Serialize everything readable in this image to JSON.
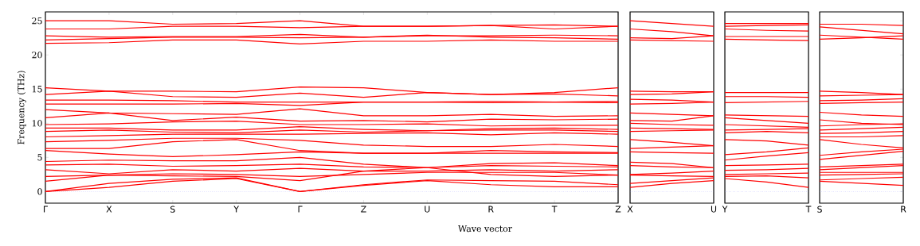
{
  "chart_data": [
    {
      "type": "line",
      "xlabel": "Wave vector",
      "ylabel": "Frequency (THz)",
      "categories": [
        "Γ",
        "X",
        "S",
        "Y",
        "Γ",
        "Z",
        "U",
        "R",
        "T",
        "Z"
      ],
      "ylim": [
        -1.7,
        26.3
      ],
      "yticks": [
        0,
        5,
        10,
        15,
        20,
        25
      ],
      "ref_lines": [
        {
          "axis": "y",
          "value": 0,
          "color": "#8080ff",
          "line_style": "dotted"
        }
      ],
      "series": [
        {
          "color": "#ff0000",
          "values": [
            25.0,
            25.0,
            24.5,
            24.6,
            25.0,
            24.2,
            24.2,
            24.3,
            24.4,
            24.2
          ]
        },
        {
          "color": "#ff0000",
          "values": [
            23.8,
            23.8,
            24.2,
            24.2,
            24.0,
            24.2,
            24.2,
            24.3,
            23.8,
            24.2
          ]
        },
        {
          "color": "#ff0000",
          "values": [
            22.8,
            22.6,
            22.7,
            22.7,
            23.0,
            22.6,
            22.8,
            22.8,
            22.9,
            22.8
          ]
        },
        {
          "color": "#ff0000",
          "values": [
            22.2,
            22.4,
            22.6,
            22.6,
            22.5,
            22.6,
            22.9,
            22.6,
            22.5,
            22.3
          ]
        },
        {
          "color": "#ff0000",
          "values": [
            21.7,
            21.8,
            22.2,
            22.2,
            21.6,
            22.0,
            22.0,
            22.2,
            22.0,
            22.0
          ]
        },
        {
          "color": "#ff0000",
          "values": [
            15.2,
            14.7,
            14.7,
            14.6,
            15.3,
            15.2,
            14.5,
            14.2,
            14.5,
            15.2
          ]
        },
        {
          "color": "#ff0000",
          "values": [
            14.2,
            14.7,
            13.9,
            13.8,
            14.4,
            13.8,
            14.5,
            14.2,
            14.3,
            14.0
          ]
        },
        {
          "color": "#ff0000",
          "values": [
            13.4,
            13.4,
            13.3,
            13.1,
            13.1,
            13.1,
            13.1,
            13.2,
            13.1,
            13.0
          ]
        },
        {
          "color": "#ff0000",
          "values": [
            12.8,
            12.8,
            12.8,
            12.9,
            12.6,
            13.1,
            13.1,
            13.0,
            13.1,
            13.2
          ]
        },
        {
          "color": "#ff0000",
          "values": [
            12.0,
            11.5,
            11.4,
            11.3,
            12.1,
            11.1,
            11.1,
            11.3,
            11.0,
            11.1
          ]
        },
        {
          "color": "#ff0000",
          "values": [
            10.8,
            11.5,
            10.4,
            10.9,
            10.3,
            10.4,
            10.2,
            10.6,
            10.5,
            10.6
          ]
        },
        {
          "color": "#ff0000",
          "values": [
            9.8,
            9.9,
            10.2,
            10.3,
            9.8,
            9.8,
            9.9,
            9.6,
            9.7,
            9.7
          ]
        },
        {
          "color": "#ff0000",
          "values": [
            9.3,
            9.3,
            9.0,
            9.0,
            9.5,
            9.1,
            8.9,
            9.2,
            9.3,
            9.1
          ]
        },
        {
          "color": "#ff0000",
          "values": [
            8.8,
            9.0,
            8.7,
            8.6,
            9.0,
            8.7,
            8.9,
            9.0,
            9.0,
            8.8
          ]
        },
        {
          "color": "#ff0000",
          "values": [
            8.0,
            8.2,
            8.4,
            8.4,
            8.4,
            8.5,
            8.6,
            8.3,
            8.6,
            8.4
          ]
        },
        {
          "color": "#ff0000",
          "values": [
            7.3,
            7.5,
            7.8,
            7.8,
            7.5,
            6.8,
            6.6,
            6.6,
            6.9,
            6.6
          ]
        },
        {
          "color": "#ff0000",
          "values": [
            6.3,
            6.3,
            7.3,
            7.6,
            6.0,
            5.6,
            5.6,
            6.0,
            5.8,
            5.7
          ]
        },
        {
          "color": "#ff0000",
          "values": [
            6.0,
            5.5,
            5.1,
            5.4,
            5.8,
            5.6,
            5.6,
            5.6,
            5.6,
            5.6
          ]
        },
        {
          "color": "#ff0000",
          "values": [
            4.4,
            4.6,
            4.5,
            4.5,
            5.0,
            4.0,
            3.5,
            4.1,
            4.2,
            3.8
          ]
        },
        {
          "color": "#ff0000",
          "values": [
            3.9,
            4.0,
            3.7,
            3.8,
            4.0,
            3.6,
            3.5,
            3.8,
            3.7,
            3.6
          ]
        },
        {
          "color": "#ff0000",
          "values": [
            3.2,
            2.6,
            3.2,
            3.0,
            3.4,
            3.0,
            3.0,
            3.2,
            3.0,
            3.2
          ]
        },
        {
          "color": "#ff0000",
          "values": [
            2.2,
            2.4,
            2.6,
            2.5,
            2.2,
            2.5,
            2.8,
            2.8,
            2.8,
            2.4
          ]
        },
        {
          "color": "#ff0000",
          "values": [
            1.5,
            2.4,
            2.3,
            2.2,
            1.6,
            3.0,
            3.5,
            2.5,
            2.2,
            2.4
          ]
        },
        {
          "color": "#ff0000",
          "values": [
            0,
            1.2,
            1.8,
            2.0,
            0,
            1.0,
            1.7,
            1.6,
            1.5,
            1.0
          ]
        },
        {
          "color": "#ff0000",
          "values": [
            0,
            0.6,
            1.5,
            1.9,
            0,
            0.9,
            1.6,
            1.0,
            0.7,
            0.7
          ]
        }
      ]
    },
    {
      "type": "line",
      "categories": [
        "X",
        null,
        "U"
      ],
      "ylim": [
        -1.7,
        26.3
      ],
      "yticks": [
        0,
        5,
        10,
        15,
        20,
        25
      ],
      "tick_labels": "x",
      "ref_lines": [
        {
          "axis": "y",
          "value": 0,
          "color": "#8080ff",
          "line_style": "dotted"
        }
      ],
      "series": [
        {
          "color": "#ff0000",
          "values": [
            25.0,
            24.6,
            24.2
          ]
        },
        {
          "color": "#ff0000",
          "values": [
            23.8,
            23.4,
            22.8
          ]
        },
        {
          "color": "#ff0000",
          "values": [
            22.5,
            22.4,
            22.8
          ]
        },
        {
          "color": "#ff0000",
          "values": [
            22.2,
            22.1,
            22.0
          ]
        },
        {
          "color": "#ff0000",
          "values": [
            14.7,
            14.6,
            14.6
          ]
        },
        {
          "color": "#ff0000",
          "values": [
            14.2,
            14.3,
            14.6
          ]
        },
        {
          "color": "#ff0000",
          "values": [
            13.5,
            13.4,
            13.1
          ]
        },
        {
          "color": "#ff0000",
          "values": [
            12.8,
            12.9,
            13.1
          ]
        },
        {
          "color": "#ff0000",
          "values": [
            11.5,
            11.3,
            11.1
          ]
        },
        {
          "color": "#ff0000",
          "values": [
            10.4,
            10.3,
            11.1
          ]
        },
        {
          "color": "#ff0000",
          "values": [
            10.0,
            9.8,
            9.7
          ]
        },
        {
          "color": "#ff0000",
          "values": [
            9.3,
            9.2,
            9.1
          ]
        },
        {
          "color": "#ff0000",
          "values": [
            8.8,
            8.9,
            9.0
          ]
        },
        {
          "color": "#ff0000",
          "values": [
            7.6,
            7.2,
            6.7
          ]
        },
        {
          "color": "#ff0000",
          "values": [
            6.3,
            6.5,
            6.7
          ]
        },
        {
          "color": "#ff0000",
          "values": [
            5.8,
            5.7,
            5.6
          ]
        },
        {
          "color": "#ff0000",
          "values": [
            4.3,
            4.1,
            3.5
          ]
        },
        {
          "color": "#ff0000",
          "values": [
            3.8,
            3.6,
            3.5
          ]
        },
        {
          "color": "#ff0000",
          "values": [
            2.5,
            2.7,
            3.0
          ]
        },
        {
          "color": "#ff0000",
          "values": [
            2.4,
            2.3,
            2.2
          ]
        },
        {
          "color": "#ff0000",
          "values": [
            1.2,
            1.6,
            2.0
          ]
        },
        {
          "color": "#ff0000",
          "values": [
            0.6,
            1.2,
            1.6
          ]
        }
      ]
    },
    {
      "type": "line",
      "categories": [
        "Y",
        null,
        "T"
      ],
      "ylim": [
        -1.7,
        26.3
      ],
      "yticks": [
        0,
        5,
        10,
        15,
        20,
        25
      ],
      "tick_labels": "x",
      "ref_lines": [
        {
          "axis": "y",
          "value": 0,
          "color": "#8080ff",
          "line_style": "dotted"
        }
      ],
      "series": [
        {
          "color": "#ff0000",
          "values": [
            24.6,
            24.6,
            24.6
          ]
        },
        {
          "color": "#ff0000",
          "values": [
            24.2,
            24.3,
            24.4
          ]
        },
        {
          "color": "#ff0000",
          "values": [
            23.8,
            23.6,
            23.5
          ]
        },
        {
          "color": "#ff0000",
          "values": [
            22.7,
            22.7,
            22.7
          ]
        },
        {
          "color": "#ff0000",
          "values": [
            22.3,
            22.2,
            22.1
          ]
        },
        {
          "color": "#ff0000",
          "values": [
            14.5,
            14.5,
            14.5
          ]
        },
        {
          "color": "#ff0000",
          "values": [
            13.9,
            13.9,
            13.8
          ]
        },
        {
          "color": "#ff0000",
          "values": [
            13.0,
            13.1,
            13.2
          ]
        },
        {
          "color": "#ff0000",
          "values": [
            11.2,
            11.1,
            11.0
          ]
        },
        {
          "color": "#ff0000",
          "values": [
            10.8,
            10.4,
            10.0
          ]
        },
        {
          "color": "#ff0000",
          "values": [
            9.8,
            9.6,
            9.4
          ]
        },
        {
          "color": "#ff0000",
          "values": [
            9.0,
            9.1,
            9.2
          ]
        },
        {
          "color": "#ff0000",
          "values": [
            8.6,
            8.8,
            8.6
          ]
        },
        {
          "color": "#ff0000",
          "values": [
            7.6,
            7.4,
            6.8
          ]
        },
        {
          "color": "#ff0000",
          "values": [
            5.4,
            5.8,
            6.4
          ]
        },
        {
          "color": "#ff0000",
          "values": [
            4.6,
            5.2,
            5.7
          ]
        },
        {
          "color": "#ff0000",
          "values": [
            3.8,
            3.9,
            4.0
          ]
        },
        {
          "color": "#ff0000",
          "values": [
            3.1,
            3.2,
            3.4
          ]
        },
        {
          "color": "#ff0000",
          "values": [
            2.5,
            2.6,
            2.7
          ]
        },
        {
          "color": "#ff0000",
          "values": [
            2.2,
            2.3,
            2.0
          ]
        },
        {
          "color": "#ff0000",
          "values": [
            1.9,
            1.4,
            0.6
          ]
        }
      ]
    },
    {
      "type": "line",
      "categories": [
        "S",
        null,
        "R"
      ],
      "ylim": [
        -1.7,
        26.3
      ],
      "yticks": [
        0,
        5,
        10,
        15,
        20,
        25
      ],
      "tick_labels": "x",
      "ref_lines": [
        {
          "axis": "y",
          "value": 0,
          "color": "#8080ff",
          "line_style": "dotted"
        }
      ],
      "series": [
        {
          "color": "#ff0000",
          "values": [
            24.5,
            24.5,
            24.3
          ]
        },
        {
          "color": "#ff0000",
          "values": [
            24.1,
            23.6,
            23.1
          ]
        },
        {
          "color": "#ff0000",
          "values": [
            22.9,
            22.6,
            22.3
          ]
        },
        {
          "color": "#ff0000",
          "values": [
            22.3,
            22.5,
            22.8
          ]
        },
        {
          "color": "#ff0000",
          "values": [
            14.7,
            14.5,
            14.2
          ]
        },
        {
          "color": "#ff0000",
          "values": [
            14.0,
            14.1,
            14.2
          ]
        },
        {
          "color": "#ff0000",
          "values": [
            13.3,
            13.4,
            13.6
          ]
        },
        {
          "color": "#ff0000",
          "values": [
            12.9,
            13.0,
            13.1
          ]
        },
        {
          "color": "#ff0000",
          "values": [
            11.6,
            11.2,
            11.0
          ]
        },
        {
          "color": "#ff0000",
          "values": [
            10.5,
            10.0,
            9.8
          ]
        },
        {
          "color": "#ff0000",
          "values": [
            9.6,
            9.8,
            9.9
          ]
        },
        {
          "color": "#ff0000",
          "values": [
            9.0,
            9.2,
            9.4
          ]
        },
        {
          "color": "#ff0000",
          "values": [
            8.5,
            8.6,
            8.8
          ]
        },
        {
          "color": "#ff0000",
          "values": [
            8.0,
            8.0,
            8.2
          ]
        },
        {
          "color": "#ff0000",
          "values": [
            7.6,
            6.9,
            6.4
          ]
        },
        {
          "color": "#ff0000",
          "values": [
            5.3,
            5.8,
            6.2
          ]
        },
        {
          "color": "#ff0000",
          "values": [
            4.7,
            5.3,
            5.9
          ]
        },
        {
          "color": "#ff0000",
          "values": [
            3.6,
            3.8,
            4.0
          ]
        },
        {
          "color": "#ff0000",
          "values": [
            3.2,
            3.5,
            3.8
          ]
        },
        {
          "color": "#ff0000",
          "values": [
            2.8,
            2.8,
            2.8
          ]
        },
        {
          "color": "#ff0000",
          "values": [
            2.4,
            2.5,
            2.6
          ]
        },
        {
          "color": "#ff0000",
          "values": [
            1.7,
            1.9,
            2.1
          ]
        },
        {
          "color": "#ff0000",
          "values": [
            1.5,
            1.2,
            0.9
          ]
        }
      ]
    }
  ]
}
